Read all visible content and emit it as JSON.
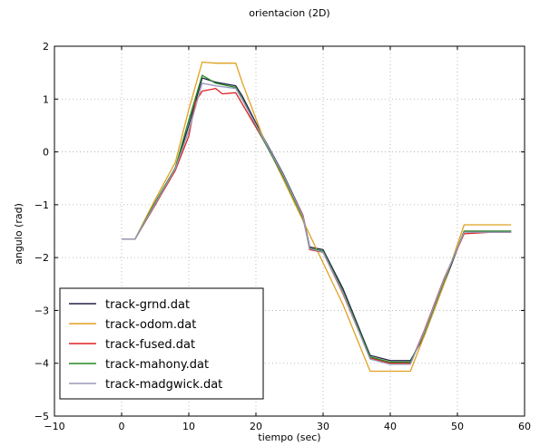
{
  "chart_data": {
    "type": "line",
    "title": "orientacion (2D)",
    "xlabel": "tiempo (sec)",
    "ylabel": "angulo (rad)",
    "xlim": [
      -10,
      60
    ],
    "ylim": [
      -5,
      2
    ],
    "xticks": [
      "−10",
      "0",
      "10",
      "20",
      "30",
      "40",
      "50",
      "60"
    ],
    "yticks": [
      "−5",
      "−4",
      "−3",
      "−2",
      "−1",
      "0",
      "1",
      "2"
    ],
    "grid": true,
    "legend_position": "lower-left",
    "series": [
      {
        "name": "track-grnd.dat",
        "color": "#222244",
        "points": [
          [
            0,
            -1.65
          ],
          [
            2,
            -1.65
          ],
          [
            5,
            -1.0
          ],
          [
            8,
            -0.3
          ],
          [
            10,
            0.5
          ],
          [
            12,
            1.4
          ],
          [
            14,
            1.32
          ],
          [
            17,
            1.25
          ],
          [
            18,
            1.05
          ],
          [
            21,
            0.3
          ],
          [
            24,
            -0.4
          ],
          [
            27,
            -1.2
          ],
          [
            28,
            -1.8
          ],
          [
            30,
            -1.85
          ],
          [
            33,
            -2.6
          ],
          [
            37,
            -3.85
          ],
          [
            40,
            -3.95
          ],
          [
            43,
            -3.95
          ],
          [
            45,
            -3.5
          ],
          [
            48,
            -2.5
          ],
          [
            51,
            -1.5
          ],
          [
            55,
            -1.5
          ],
          [
            58,
            -1.5
          ]
        ]
      },
      {
        "name": "track-odom.dat",
        "color": "#e0a020",
        "points": [
          [
            0,
            -1.65
          ],
          [
            2,
            -1.65
          ],
          [
            5,
            -0.9
          ],
          [
            8,
            -0.2
          ],
          [
            10,
            0.8
          ],
          [
            12,
            1.7
          ],
          [
            14,
            1.68
          ],
          [
            17,
            1.68
          ],
          [
            18,
            1.3
          ],
          [
            21,
            0.3
          ],
          [
            24,
            -0.5
          ],
          [
            27,
            -1.3
          ],
          [
            30,
            -2.1
          ],
          [
            33,
            -2.9
          ],
          [
            37,
            -4.15
          ],
          [
            40,
            -4.15
          ],
          [
            43,
            -4.15
          ],
          [
            45,
            -3.5
          ],
          [
            48,
            -2.5
          ],
          [
            51,
            -1.38
          ],
          [
            55,
            -1.38
          ],
          [
            58,
            -1.38
          ]
        ]
      },
      {
        "name": "track-fused.dat",
        "color": "#dd2222",
        "points": [
          [
            0,
            -1.65
          ],
          [
            2,
            -1.65
          ],
          [
            5,
            -1.0
          ],
          [
            8,
            -0.35
          ],
          [
            10,
            0.3
          ],
          [
            11,
            0.95
          ],
          [
            12,
            1.15
          ],
          [
            14,
            1.2
          ],
          [
            15,
            1.1
          ],
          [
            17,
            1.12
          ],
          [
            18,
            0.9
          ],
          [
            21,
            0.25
          ],
          [
            24,
            -0.45
          ],
          [
            27,
            -1.2
          ],
          [
            28,
            -1.85
          ],
          [
            30,
            -1.9
          ],
          [
            33,
            -2.7
          ],
          [
            37,
            -3.9
          ],
          [
            40,
            -4.0
          ],
          [
            43,
            -4.0
          ],
          [
            45,
            -3.4
          ],
          [
            48,
            -2.4
          ],
          [
            51,
            -1.55
          ],
          [
            55,
            -1.52
          ],
          [
            58,
            -1.52
          ]
        ]
      },
      {
        "name": "track-mahony.dat",
        "color": "#228822",
        "points": [
          [
            0,
            -1.65
          ],
          [
            2,
            -1.65
          ],
          [
            5,
            -0.95
          ],
          [
            8,
            -0.3
          ],
          [
            10,
            0.6
          ],
          [
            12,
            1.45
          ],
          [
            14,
            1.3
          ],
          [
            17,
            1.22
          ],
          [
            18,
            1.0
          ],
          [
            21,
            0.25
          ],
          [
            24,
            -0.45
          ],
          [
            27,
            -1.25
          ],
          [
            28,
            -1.82
          ],
          [
            30,
            -1.88
          ],
          [
            33,
            -2.65
          ],
          [
            37,
            -3.88
          ],
          [
            40,
            -3.98
          ],
          [
            43,
            -3.98
          ],
          [
            45,
            -3.45
          ],
          [
            48,
            -2.45
          ],
          [
            51,
            -1.5
          ],
          [
            55,
            -1.5
          ],
          [
            58,
            -1.5
          ]
        ]
      },
      {
        "name": "track-madgwick.dat",
        "color": "#9999bb",
        "points": [
          [
            0,
            -1.65
          ],
          [
            2,
            -1.65
          ],
          [
            5,
            -0.98
          ],
          [
            8,
            -0.32
          ],
          [
            10,
            0.4
          ],
          [
            12,
            1.3
          ],
          [
            14,
            1.25
          ],
          [
            17,
            1.2
          ],
          [
            18,
            0.98
          ],
          [
            21,
            0.28
          ],
          [
            24,
            -0.42
          ],
          [
            27,
            -1.22
          ],
          [
            28,
            -1.83
          ],
          [
            30,
            -1.9
          ],
          [
            33,
            -2.68
          ],
          [
            37,
            -3.92
          ],
          [
            40,
            -4.02
          ],
          [
            43,
            -4.02
          ],
          [
            45,
            -3.42
          ],
          [
            48,
            -2.42
          ],
          [
            51,
            -1.52
          ],
          [
            55,
            -1.52
          ],
          [
            58,
            -1.52
          ]
        ]
      }
    ]
  }
}
